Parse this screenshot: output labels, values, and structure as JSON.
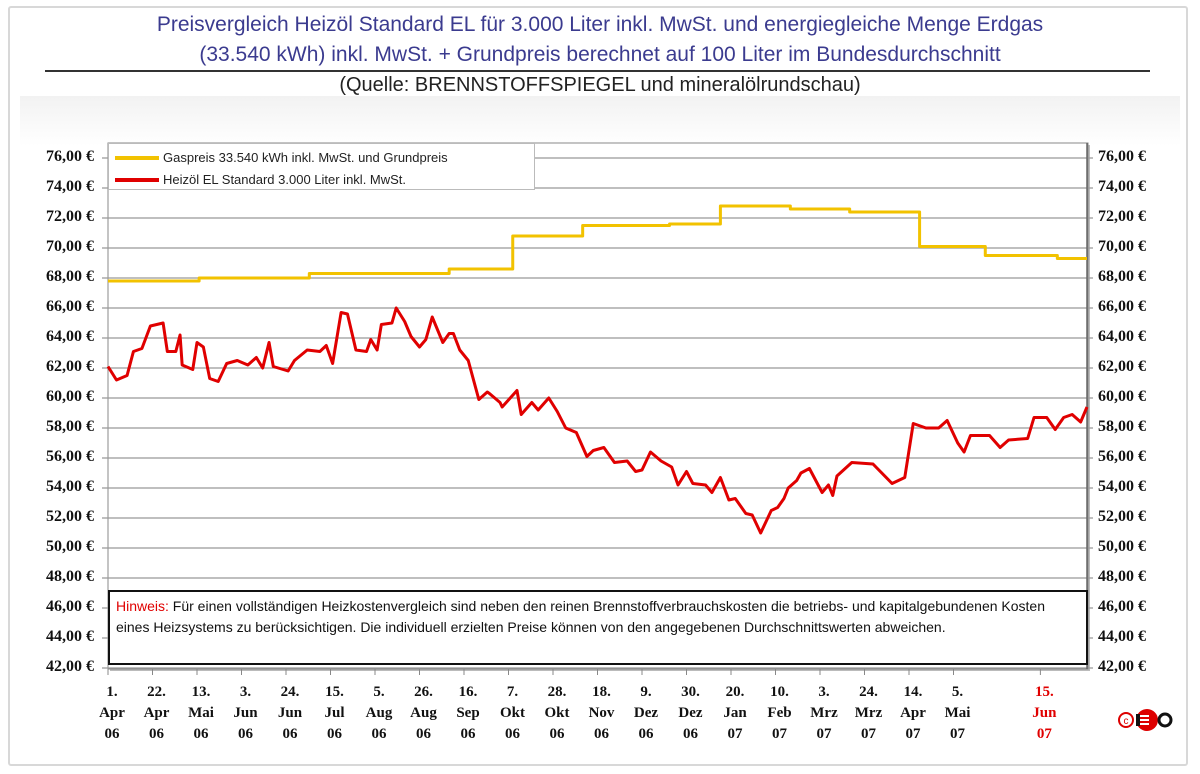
{
  "header": {
    "title_line1": "Preisvergleich Heizöl Standard EL für 3.000 Liter inkl. MwSt. und energiegleiche Menge Erdgas",
    "title_line2": "(33.540 kWh) inkl. MwSt. + Grundpreis berechnet auf 100 Liter im Bundesdurchschnitt",
    "source": "(Quelle: BRENNSTOFFSPIEGEL und mineralölrundschau)"
  },
  "note": {
    "label": "Hinweis:",
    "text": " Für einen vollständigen Heizkostenvergleich sind neben den reinen Brennstoffverbrauchskosten die betriebs- und kapitalgebundenen Kosten eines Heizsystems zu berücksichtigen. Die individuell erzielten Preise können von den angegebenen Durchschnittswerten abweichen."
  },
  "logo": {
    "text": "©EO"
  },
  "chart_data": {
    "type": "line",
    "title": "Preisvergleich Heizöl Standard EL für 3.000 Liter inkl. MwSt. und energiegleiche Menge Erdgas (33.540 kWh) inkl. MwSt. + Grundpreis berechnet auf 100 Liter im Bundesdurchschnitt",
    "xlim": [
      "2006-04-01",
      "2007-07-07"
    ],
    "ylim": [
      42,
      76
    ],
    "y_ticks": [
      "76,00 €",
      "74,00 €",
      "72,00 €",
      "70,00 €",
      "68,00 €",
      "66,00 €",
      "64,00 €",
      "62,00 €",
      "60,00 €",
      "58,00 €",
      "56,00 €",
      "54,00 €",
      "52,00 €",
      "50,00 €",
      "48,00 €",
      "46,00 €",
      "44,00 €",
      "42,00 €"
    ],
    "y_axis": "both sides",
    "grid": "horizontal",
    "legend_position": "top-left",
    "x_ticks": [
      {
        "date": "2006-04-01",
        "lines": [
          "1.",
          "Apr",
          "06"
        ]
      },
      {
        "date": "2006-04-22",
        "lines": [
          "22.",
          "Apr",
          "06"
        ]
      },
      {
        "date": "2006-05-13",
        "lines": [
          "13.",
          "Mai",
          "06"
        ]
      },
      {
        "date": "2006-06-03",
        "lines": [
          "3.",
          "Jun",
          "06"
        ]
      },
      {
        "date": "2006-06-24",
        "lines": [
          "24.",
          "Jun",
          "06"
        ]
      },
      {
        "date": "2006-07-15",
        "lines": [
          "15.",
          "Jul",
          "06"
        ]
      },
      {
        "date": "2006-08-05",
        "lines": [
          "5.",
          "Aug",
          "06"
        ]
      },
      {
        "date": "2006-08-26",
        "lines": [
          "26.",
          "Aug",
          "06"
        ]
      },
      {
        "date": "2006-09-16",
        "lines": [
          "16.",
          "Sep",
          "06"
        ]
      },
      {
        "date": "2006-10-07",
        "lines": [
          "7.",
          "Okt",
          "06"
        ]
      },
      {
        "date": "2006-10-28",
        "lines": [
          "28.",
          "Okt",
          "06"
        ]
      },
      {
        "date": "2006-11-18",
        "lines": [
          "18.",
          "Nov",
          "06"
        ]
      },
      {
        "date": "2006-12-09",
        "lines": [
          "9.",
          "Dez",
          "06"
        ]
      },
      {
        "date": "2006-12-30",
        "lines": [
          "30.",
          "Dez",
          "06"
        ]
      },
      {
        "date": "2007-01-20",
        "lines": [
          "20.",
          "Jan",
          "07"
        ]
      },
      {
        "date": "2007-02-10",
        "lines": [
          "10.",
          "Feb",
          "07"
        ]
      },
      {
        "date": "2007-03-03",
        "lines": [
          "3.",
          "Mrz",
          "07"
        ]
      },
      {
        "date": "2007-03-24",
        "lines": [
          "24.",
          "Mrz",
          "07"
        ]
      },
      {
        "date": "2007-04-14",
        "lines": [
          "14.",
          "Apr",
          "07"
        ]
      },
      {
        "date": "2007-05-05",
        "lines": [
          "5.",
          "Mai",
          "07"
        ]
      },
      {
        "date": "2007-06-15",
        "lines": [
          "15.",
          "Jun",
          "07"
        ],
        "highlight": true
      }
    ],
    "highlight_color": "#e00000",
    "series": [
      {
        "name": "Gaspreis 33.540 kWh inkl. MwSt. und Grundpreis",
        "color": "#f2c200",
        "step": true,
        "points": [
          [
            "2006-04-01",
            67.8
          ],
          [
            "2006-05-14",
            68.0
          ],
          [
            "2006-07-05",
            68.3
          ],
          [
            "2006-09-09",
            68.6
          ],
          [
            "2006-10-09",
            70.8
          ],
          [
            "2006-11-11",
            71.5
          ],
          [
            "2006-12-22",
            71.6
          ],
          [
            "2007-01-15",
            72.8
          ],
          [
            "2007-02-17",
            72.6
          ],
          [
            "2007-03-17",
            72.4
          ],
          [
            "2007-04-19",
            70.1
          ],
          [
            "2007-05-20",
            69.5
          ],
          [
            "2007-06-23",
            69.3
          ],
          [
            "2007-07-07",
            69.3
          ]
        ]
      },
      {
        "name": "Heizöl EL Standard 3.000 Liter inkl. MwSt.",
        "color": "#e00000",
        "step": false,
        "points": [
          [
            "2006-04-01",
            62.1
          ],
          [
            "2006-04-05",
            61.2
          ],
          [
            "2006-04-10",
            61.5
          ],
          [
            "2006-04-13",
            63.1
          ],
          [
            "2006-04-17",
            63.3
          ],
          [
            "2006-04-21",
            64.8
          ],
          [
            "2006-04-27",
            65.0
          ],
          [
            "2006-04-29",
            63.1
          ],
          [
            "2006-05-03",
            63.1
          ],
          [
            "2006-05-05",
            64.2
          ],
          [
            "2006-05-06",
            62.2
          ],
          [
            "2006-05-11",
            61.9
          ],
          [
            "2006-05-13",
            63.7
          ],
          [
            "2006-05-16",
            63.4
          ],
          [
            "2006-05-19",
            61.3
          ],
          [
            "2006-05-23",
            61.1
          ],
          [
            "2006-05-27",
            62.3
          ],
          [
            "2006-06-01",
            62.5
          ],
          [
            "2006-06-06",
            62.2
          ],
          [
            "2006-06-10",
            62.7
          ],
          [
            "2006-06-13",
            62.0
          ],
          [
            "2006-06-16",
            63.7
          ],
          [
            "2006-06-18",
            62.1
          ],
          [
            "2006-06-25",
            61.8
          ],
          [
            "2006-06-28",
            62.5
          ],
          [
            "2006-07-04",
            63.2
          ],
          [
            "2006-07-10",
            63.1
          ],
          [
            "2006-07-13",
            63.5
          ],
          [
            "2006-07-16",
            62.3
          ],
          [
            "2006-07-20",
            65.7
          ],
          [
            "2006-07-23",
            65.6
          ],
          [
            "2006-07-27",
            63.2
          ],
          [
            "2006-08-01",
            63.1
          ],
          [
            "2006-08-03",
            63.9
          ],
          [
            "2006-08-06",
            63.2
          ],
          [
            "2006-08-08",
            64.9
          ],
          [
            "2006-08-13",
            65.0
          ],
          [
            "2006-08-15",
            66.0
          ],
          [
            "2006-08-19",
            65.1
          ],
          [
            "2006-08-22",
            64.1
          ],
          [
            "2006-08-26",
            63.4
          ],
          [
            "2006-08-29",
            63.9
          ],
          [
            "2006-09-01",
            65.4
          ],
          [
            "2006-09-06",
            63.7
          ],
          [
            "2006-09-09",
            64.3
          ],
          [
            "2006-09-11",
            64.3
          ],
          [
            "2006-09-14",
            63.2
          ],
          [
            "2006-09-18",
            62.5
          ],
          [
            "2006-09-23",
            59.9
          ],
          [
            "2006-09-27",
            60.4
          ],
          [
            "2006-09-28",
            60.3
          ],
          [
            "2006-10-03",
            59.7
          ],
          [
            "2006-10-04",
            59.4
          ],
          [
            "2006-10-11",
            60.5
          ],
          [
            "2006-10-13",
            58.9
          ],
          [
            "2006-10-18",
            59.7
          ],
          [
            "2006-10-21",
            59.2
          ],
          [
            "2006-10-26",
            60.0
          ],
          [
            "2006-10-30",
            59.1
          ],
          [
            "2006-11-03",
            58.0
          ],
          [
            "2006-11-08",
            57.7
          ],
          [
            "2006-11-13",
            56.1
          ],
          [
            "2006-11-16",
            56.5
          ],
          [
            "2006-11-21",
            56.7
          ],
          [
            "2006-11-26",
            55.7
          ],
          [
            "2006-12-02",
            55.8
          ],
          [
            "2006-12-06",
            55.1
          ],
          [
            "2006-12-09",
            55.2
          ],
          [
            "2006-12-13",
            56.4
          ],
          [
            "2006-12-18",
            55.8
          ],
          [
            "2006-12-23",
            55.4
          ],
          [
            "2006-12-26",
            54.2
          ],
          [
            "2006-12-30",
            55.1
          ],
          [
            "2007-01-02",
            54.3
          ],
          [
            "2007-01-08",
            54.2
          ],
          [
            "2007-01-11",
            53.7
          ],
          [
            "2007-01-15",
            54.7
          ],
          [
            "2007-01-19",
            53.2
          ],
          [
            "2007-01-22",
            53.3
          ],
          [
            "2007-01-27",
            52.3
          ],
          [
            "2007-01-30",
            52.2
          ],
          [
            "2007-02-03",
            51.0
          ],
          [
            "2007-02-08",
            52.5
          ],
          [
            "2007-02-11",
            52.7
          ],
          [
            "2007-02-14",
            53.3
          ],
          [
            "2007-02-16",
            54.0
          ],
          [
            "2007-02-20",
            54.5
          ],
          [
            "2007-02-22",
            55.0
          ],
          [
            "2007-02-26",
            55.3
          ],
          [
            "2007-03-04",
            53.7
          ],
          [
            "2007-03-07",
            54.2
          ],
          [
            "2007-03-09",
            53.5
          ],
          [
            "2007-03-11",
            54.8
          ],
          [
            "2007-03-18",
            55.7
          ],
          [
            "2007-03-28",
            55.6
          ],
          [
            "2007-04-06",
            54.3
          ],
          [
            "2007-04-12",
            54.7
          ],
          [
            "2007-04-16",
            58.3
          ],
          [
            "2007-04-22",
            58.0
          ],
          [
            "2007-04-28",
            58.0
          ],
          [
            "2007-05-02",
            58.5
          ],
          [
            "2007-05-07",
            57.0
          ],
          [
            "2007-05-10",
            56.4
          ],
          [
            "2007-05-13",
            57.5
          ],
          [
            "2007-05-22",
            57.5
          ],
          [
            "2007-05-27",
            56.7
          ],
          [
            "2007-05-31",
            57.2
          ],
          [
            "2007-06-09",
            57.3
          ],
          [
            "2007-06-12",
            58.7
          ],
          [
            "2007-06-18",
            58.7
          ],
          [
            "2007-06-22",
            57.9
          ],
          [
            "2007-06-26",
            58.7
          ],
          [
            "2007-06-30",
            58.9
          ],
          [
            "2007-07-04",
            58.4
          ],
          [
            "2007-07-07",
            59.4
          ]
        ]
      }
    ]
  }
}
